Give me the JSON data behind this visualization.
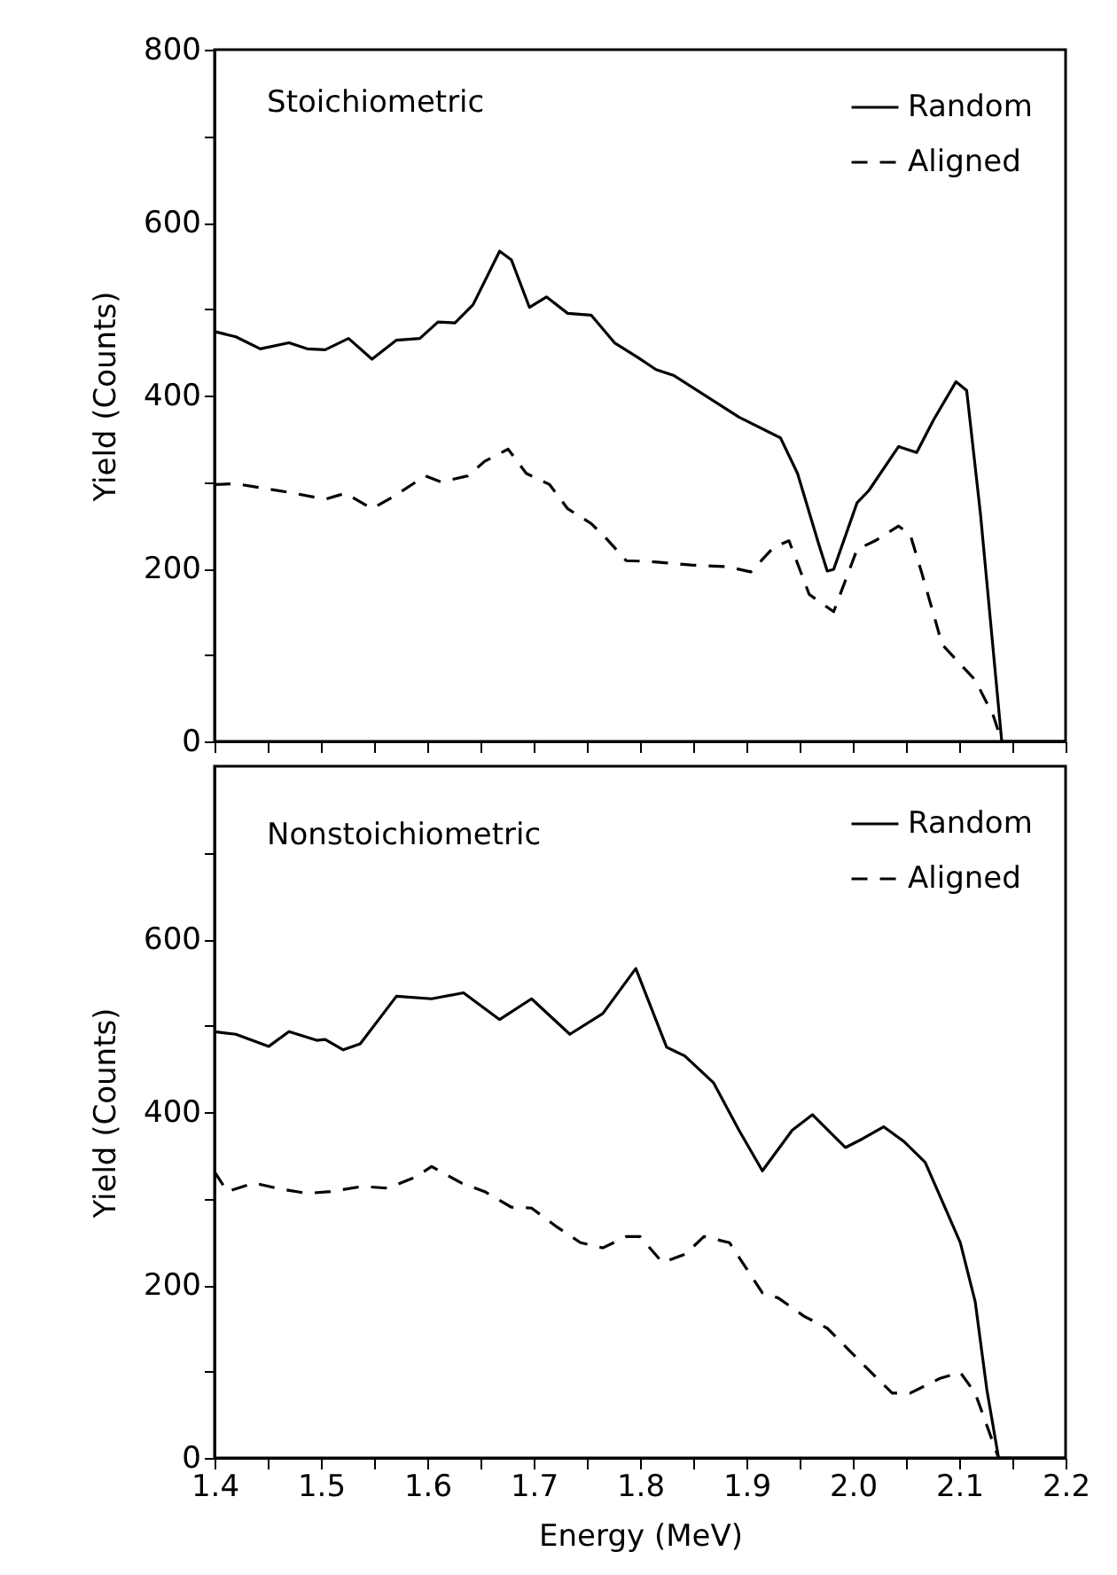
{
  "chart_data": [
    {
      "type": "line",
      "title": "Stoichiometric",
      "ylabel": "Yield (Counts)",
      "xlim": [
        1.4,
        2.2
      ],
      "ylim": [
        0,
        800
      ],
      "xticks": [
        1.4,
        {
          "value": 1.45,
          "label": null
        },
        1.5,
        {
          "value": 1.55,
          "label": null
        },
        1.6,
        {
          "value": 1.65,
          "label": null
        },
        1.7,
        {
          "value": 1.75,
          "label": null
        },
        1.8,
        {
          "value": 1.85,
          "label": null
        },
        1.9,
        {
          "value": 1.95,
          "label": null
        },
        2,
        {
          "value": 2.05,
          "label": null
        },
        2.1,
        {
          "value": 2.15,
          "label": null
        },
        2.2
      ],
      "yticks": [
        0,
        {
          "value": 100,
          "label": null
        },
        200,
        {
          "value": 300,
          "label": null
        },
        400,
        {
          "value": 500,
          "label": null
        },
        600,
        {
          "value": 700,
          "label": null
        },
        800
      ],
      "tick_labels": "y",
      "grid": false,
      "legend": "top right",
      "series": [
        {
          "name": "Random",
          "color": "#000000",
          "line_style": "solid",
          "x": [
            1.4,
            1.42,
            1.443,
            1.47,
            1.487,
            1.504,
            1.526,
            1.548,
            1.571,
            1.593,
            1.61,
            1.626,
            1.643,
            1.668,
            1.679,
            1.696,
            1.712,
            1.732,
            1.754,
            1.776,
            1.798,
            1.815,
            1.832,
            1.893,
            1.932,
            1.948,
            1.968,
            1.976,
            1.982,
            2.004,
            2.015,
            2.043,
            2.06,
            2.076,
            2.097,
            2.107,
            2.12,
            2.14,
            2.2
          ],
          "values": [
            474,
            468,
            454,
            461,
            454,
            453,
            466,
            442,
            464,
            466,
            485,
            484,
            505,
            567,
            557,
            502,
            514,
            495,
            493,
            461,
            444,
            430,
            423,
            375,
            351,
            310,
            228,
            197,
            199,
            276,
            290,
            341,
            334,
            372,
            416,
            406,
            263,
            0,
            0
          ]
        },
        {
          "name": "Aligned",
          "color": "#000000",
          "line_style": "dashed",
          "x": [
            1.4,
            1.42,
            1.47,
            1.504,
            1.523,
            1.548,
            1.568,
            1.598,
            1.613,
            1.638,
            1.654,
            1.676,
            1.693,
            1.715,
            1.732,
            1.754,
            1.768,
            1.787,
            1.81,
            1.848,
            1.882,
            1.904,
            1.926,
            1.94,
            1.959,
            1.982,
            2.004,
            2.021,
            2.043,
            2.054,
            2.065,
            2.084,
            2.115,
            2.132,
            2.14
          ],
          "values": [
            297,
            298,
            288,
            280,
            287,
            269,
            283,
            307,
            300,
            307,
            324,
            338,
            310,
            297,
            269,
            252,
            235,
            209,
            208,
            204,
            202,
            196,
            225,
            232,
            170,
            150,
            222,
            232,
            249,
            239,
            194,
            112,
            71,
            30,
            0
          ]
        }
      ]
    },
    {
      "type": "line",
      "title": "Nonstoichiometric",
      "xlabel": "Energy (MeV)",
      "ylabel": "Yield (Counts)",
      "xlim": [
        1.4,
        2.2
      ],
      "ylim": [
        0,
        800
      ],
      "xticks": [
        1.4,
        {
          "value": 1.45,
          "label": null
        },
        1.5,
        {
          "value": 1.55,
          "label": null
        },
        1.6,
        {
          "value": 1.65,
          "label": null
        },
        1.7,
        {
          "value": 1.75,
          "label": null
        },
        1.8,
        {
          "value": 1.85,
          "label": null
        },
        1.9,
        {
          "value": 1.95,
          "label": null
        },
        {
          "value": 2,
          "label": "2.0"
        },
        {
          "value": 2.05,
          "label": null
        },
        2.1,
        {
          "value": 2.15,
          "label": null
        },
        2.2
      ],
      "yticks": [
        0,
        {
          "value": 100,
          "label": null
        },
        200,
        {
          "value": 300,
          "label": null
        },
        400,
        {
          "value": 500,
          "label": null
        },
        600,
        {
          "value": 700,
          "label": null
        }
      ],
      "grid": false,
      "legend": "top right",
      "series": [
        {
          "name": "Random",
          "color": "#000000",
          "line_style": "solid",
          "x": [
            1.4,
            1.42,
            1.451,
            1.47,
            1.496,
            1.504,
            1.521,
            1.537,
            1.571,
            1.604,
            1.634,
            1.668,
            1.698,
            1.734,
            1.765,
            1.796,
            1.825,
            1.842,
            1.869,
            1.893,
            1.915,
            1.943,
            1.962,
            1.993,
            2.009,
            2.029,
            2.048,
            2.068,
            2.084,
            2.101,
            2.115,
            2.126,
            2.137,
            2.2
          ],
          "values": [
            493,
            490,
            476,
            493,
            483,
            484,
            472,
            479,
            534,
            531,
            538,
            507,
            531,
            490,
            514,
            566,
            475,
            465,
            434,
            379,
            332,
            379,
            397,
            359,
            369,
            383,
            366,
            342,
            297,
            249,
            181,
            79,
            0,
            0
          ]
        },
        {
          "name": "Aligned",
          "color": "#000000",
          "line_style": "dashed",
          "x": [
            1.4,
            1.412,
            1.437,
            1.462,
            1.487,
            1.509,
            1.539,
            1.563,
            1.589,
            1.604,
            1.632,
            1.654,
            1.679,
            1.698,
            1.722,
            1.744,
            1.765,
            1.787,
            1.8,
            1.821,
            1.843,
            1.86,
            1.884,
            1.915,
            1.93,
            1.954,
            1.976,
            2.009,
            2.037,
            2.054,
            2.082,
            2.101,
            2.115,
            2.132,
            2.137
          ],
          "values": [
            331,
            308,
            318,
            311,
            306,
            308,
            314,
            312,
            325,
            337,
            318,
            308,
            290,
            289,
            267,
            249,
            243,
            256,
            256,
            226,
            236,
            256,
            249,
            191,
            185,
            164,
            150,
            109,
            75,
            75,
            92,
            99,
            75,
            17,
            0
          ]
        }
      ]
    }
  ]
}
